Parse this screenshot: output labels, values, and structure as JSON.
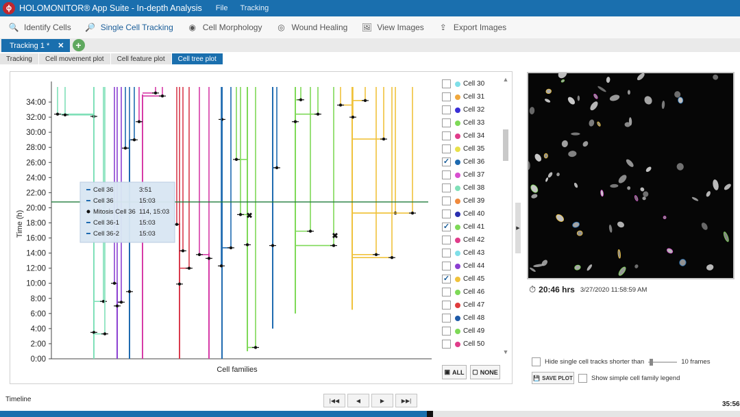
{
  "app": {
    "title": "HOLOMONITOR® App Suite - In-depth Analysis",
    "logo": "ϕ",
    "menu": [
      "File",
      "Tracking"
    ]
  },
  "toolbar": [
    {
      "label": "Identify Cells",
      "icon": "magnifier-icon",
      "active": false
    },
    {
      "label": "Single Cell Tracking",
      "icon": "magnifier-tracking-icon",
      "active": true
    },
    {
      "label": "Cell Morphology",
      "icon": "cell-morphology-icon",
      "active": false
    },
    {
      "label": "Wound Healing",
      "icon": "wound-healing-icon",
      "active": false
    },
    {
      "label": "View Images",
      "icon": "images-icon",
      "active": false
    },
    {
      "label": "Export Images",
      "icon": "export-images-icon",
      "active": false
    }
  ],
  "document_tab": {
    "label": "Tracking 1 *",
    "close": "✕",
    "add": "+"
  },
  "subtabs": [
    {
      "label": "Tracking",
      "active": false
    },
    {
      "label": "Cell movement plot",
      "active": false
    },
    {
      "label": "Cell feature plot",
      "active": false
    },
    {
      "label": "Cell tree plot",
      "active": true
    }
  ],
  "chart_data": {
    "type": "tree",
    "xlabel": "Cell families",
    "ylabel": "Time (h)",
    "ylim": [
      0,
      36
    ],
    "yticks": [
      "0:00",
      "2:00",
      "4:00",
      "6:00",
      "8:00",
      "10:00",
      "12:00",
      "14:00",
      "16:00",
      "18:00",
      "20:00",
      "22:00",
      "24:00",
      "26:00",
      "28:00",
      "30:00",
      "32:00",
      "34:00"
    ],
    "current_time_h": 20.77,
    "tooltip": [
      {
        "marker": "line",
        "name": "Cell 36",
        "value": "3:51"
      },
      {
        "marker": "line",
        "name": "Cell 36",
        "value": "15:03"
      },
      {
        "marker": "dot",
        "name": "Mitosis Cell 36",
        "value": "114, 15:03"
      },
      {
        "marker": "line",
        "name": "Cell 36-1",
        "value": "15:03"
      },
      {
        "marker": "line",
        "name": "Cell 36-2",
        "value": "15:03"
      }
    ],
    "families": [
      {
        "color": "#7fe0b8",
        "x": 122,
        "y0": 0,
        "y1": 36,
        "events": [
          {
            "x": 69,
            "y": 32.4
          },
          {
            "x": 80,
            "y": 32.3
          },
          {
            "x": 122,
            "y": 32.1
          },
          {
            "x": 122,
            "y": 3.5
          },
          {
            "x": 136,
            "y": 7.6
          },
          {
            "x": 138,
            "y": 3.3
          }
        ]
      },
      {
        "color": "#8b3fd1",
        "x": 156,
        "y0": 0,
        "y1": 10,
        "events": [
          {
            "x": 152,
            "y": 10.0
          },
          {
            "x": 156,
            "y": 7.0
          },
          {
            "x": 162,
            "y": 7.5
          }
        ]
      },
      {
        "color": "#1e6ab0",
        "x": 174,
        "y0": 0,
        "y1": 29,
        "events": [
          {
            "x": 168,
            "y": 27.9
          },
          {
            "x": 174,
            "y": 8.9
          },
          {
            "x": 181,
            "y": 29.0
          }
        ]
      },
      {
        "color": "#d63aa7",
        "x": 193,
        "y0": 0,
        "y1": 35,
        "events": [
          {
            "x": 188,
            "y": 31.4
          },
          {
            "x": 212,
            "y": 35.2
          },
          {
            "x": 222,
            "y": 34.8
          }
        ]
      },
      {
        "color": "#d93a4c",
        "x": 247,
        "y0": 0,
        "y1": 18,
        "events": [
          {
            "x": 243,
            "y": 17.8
          },
          {
            "x": 247,
            "y": 9.9
          },
          {
            "x": 252,
            "y": 14.3
          },
          {
            "x": 261,
            "y": 12.0
          }
        ]
      },
      {
        "color": "#d63aa7",
        "x": 290,
        "y0": 0,
        "y1": 14,
        "events": [
          {
            "x": 276,
            "y": 13.8
          },
          {
            "x": 290,
            "y": 13.3
          }
        ]
      },
      {
        "color": "#1e6ab0",
        "x": 309,
        "y0": 0,
        "y1": 36,
        "events": [
          {
            "x": 309,
            "y": 31.7
          },
          {
            "x": 308,
            "y": 12.3
          },
          {
            "x": 322,
            "y": 14.7
          }
        ]
      },
      {
        "color": "#7ed957",
        "x": 346,
        "y0": 1,
        "y1": 36,
        "events": [
          {
            "x": 330,
            "y": 26.4
          },
          {
            "x": 336,
            "y": 19.1
          },
          {
            "x": 346,
            "y": 15.1
          },
          {
            "x": 358,
            "y": 1.5
          }
        ]
      },
      {
        "color": "#1e6ab0",
        "x": 383,
        "y0": 4,
        "y1": 36,
        "events": [
          {
            "x": 383,
            "y": 15.0
          },
          {
            "x": 389,
            "y": 25.3
          }
        ]
      },
      {
        "color": "#7ed957",
        "x": 416,
        "y0": 6,
        "y1": 36,
        "events": [
          {
            "x": 416,
            "y": 31.4
          },
          {
            "x": 424,
            "y": 34.3
          },
          {
            "x": 438,
            "y": 16.9
          },
          {
            "x": 449,
            "y": 32.4
          },
          {
            "x": 472,
            "y": 15.0
          }
        ]
      },
      {
        "color": "#f0c23b",
        "x": 499,
        "y0": 6.5,
        "y1": 36,
        "events": [
          {
            "x": 482,
            "y": 33.6
          },
          {
            "x": 500,
            "y": 32.0
          },
          {
            "x": 518,
            "y": 34.2
          },
          {
            "x": 534,
            "y": 13.8
          },
          {
            "x": 545,
            "y": 29.1
          },
          {
            "x": 557,
            "y": 13.4
          },
          {
            "x": 562,
            "y": 19.3
          },
          {
            "x": 587,
            "y": 19.3
          }
        ]
      }
    ],
    "deaths": [
      {
        "x": 349,
        "y": 19.0
      },
      {
        "x": 474,
        "y": 16.3
      }
    ]
  },
  "legend": [
    {
      "label": "Cell 30",
      "color": "#7fdfe8",
      "checked": false,
      "expandable": false
    },
    {
      "label": "Cell 31",
      "color": "#f0a83c",
      "checked": false,
      "expandable": false
    },
    {
      "label": "Cell 32",
      "color": "#3a2fd6",
      "checked": false,
      "expandable": false
    },
    {
      "label": "Cell 33",
      "color": "#7ed957",
      "checked": false,
      "expandable": false
    },
    {
      "label": "Cell 34",
      "color": "#e03c8a",
      "checked": false,
      "expandable": false
    },
    {
      "label": "Cell 35",
      "color": "#e8e04a",
      "checked": false,
      "expandable": false
    },
    {
      "label": "Cell 36",
      "color": "#1e6ab0",
      "checked": true,
      "expandable": true
    },
    {
      "label": "Cell 37",
      "color": "#d84fd0",
      "checked": false,
      "expandable": false
    },
    {
      "label": "Cell 38",
      "color": "#7fe0b8",
      "checked": false,
      "expandable": false
    },
    {
      "label": "Cell 39",
      "color": "#f08a3c",
      "checked": false,
      "expandable": false
    },
    {
      "label": "Cell 40",
      "color": "#2a2fb0",
      "checked": false,
      "expandable": false
    },
    {
      "label": "Cell 41",
      "color": "#7ed957",
      "checked": true,
      "expandable": true
    },
    {
      "label": "Cell 42",
      "color": "#e03c8a",
      "checked": false,
      "expandable": false
    },
    {
      "label": "Cell 43",
      "color": "#7fdfe8",
      "checked": false,
      "expandable": false
    },
    {
      "label": "Cell 44",
      "color": "#8b3fd1",
      "checked": false,
      "expandable": false
    },
    {
      "label": "Cell 45",
      "color": "#f0c23b",
      "checked": true,
      "expandable": true
    },
    {
      "label": "Cell 46",
      "color": "#7ed957",
      "checked": false,
      "expandable": false
    },
    {
      "label": "Cell 47",
      "color": "#e03c3c",
      "checked": false,
      "expandable": true
    },
    {
      "label": "Cell 48",
      "color": "#1e5aa8",
      "checked": false,
      "expandable": false
    },
    {
      "label": "Cell 49",
      "color": "#7ed957",
      "checked": false,
      "expandable": false
    },
    {
      "label": "Cell 50",
      "color": "#e03c8a",
      "checked": false,
      "expandable": false
    }
  ],
  "legend_buttons": {
    "all": "ALL",
    "none": "NONE"
  },
  "image_info": {
    "elapsed": "20:46 hrs",
    "timestamp": "3/27/2020 11:58:59 AM"
  },
  "options": {
    "hide_short_label": "Hide single cell tracks shorter than",
    "hide_short_frames": "10 frames",
    "save_plot": "SAVE PLOT",
    "simple_legend_label": "Show simple cell family legend"
  },
  "timeline": {
    "label": "Timeline",
    "end_time": "35:56",
    "progress": 0.577
  },
  "colors": {
    "accent": "#1a6fae",
    "title_bar": "#1a6fae"
  }
}
